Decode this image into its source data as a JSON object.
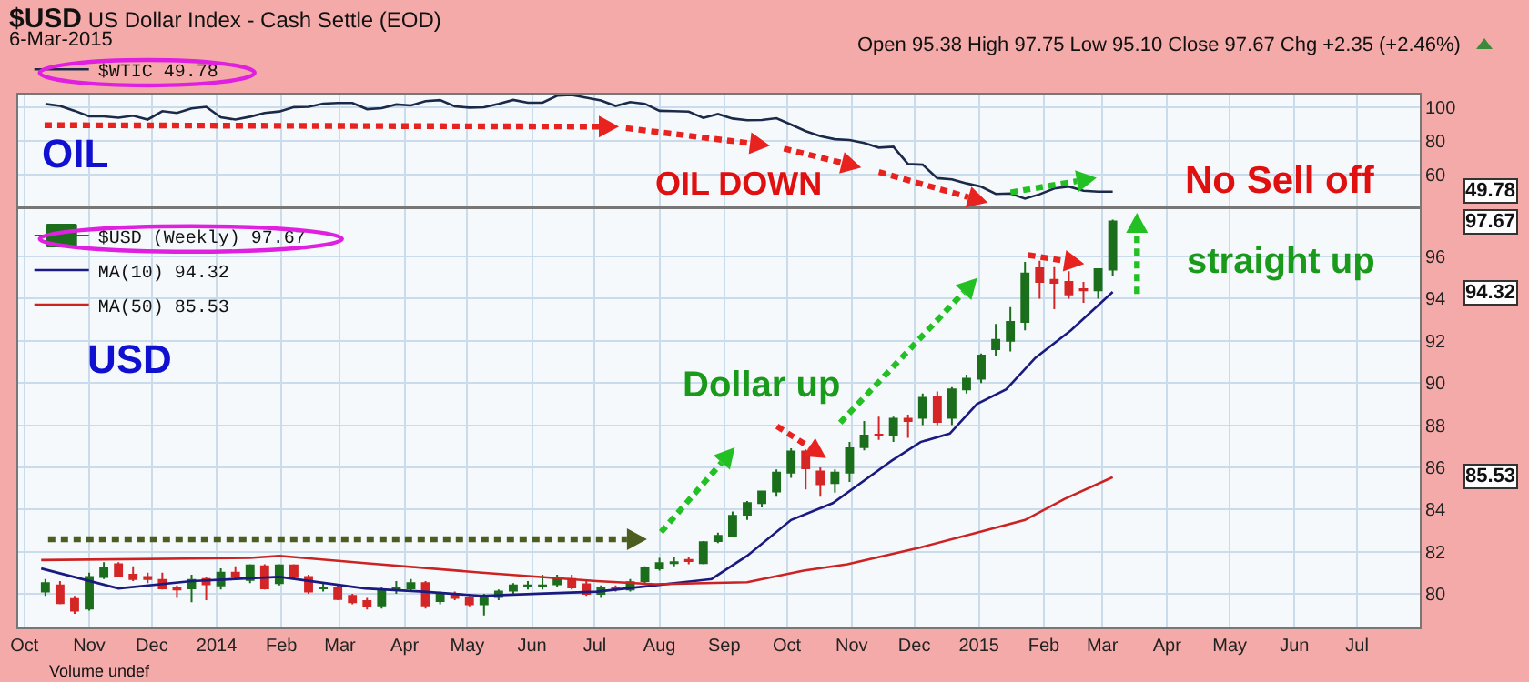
{
  "chart_data": [
    {
      "type": "line",
      "title": "$USD US Dollar Index - Cash Settle (EOD)",
      "subtitle": "6-Mar-2015",
      "annotations": [
        "Open 95.38 High 97.75 Low 95.10 Close 97.67 Chg +2.35 (+2.46%)",
        "OIL",
        "OIL DOWN",
        "No Sell off",
        "49.78"
      ],
      "x": [
        "2013-10-11",
        "2013-10-18",
        "2013-10-25",
        "2013-11-01",
        "2013-11-08",
        "2013-11-15",
        "2013-11-22",
        "2013-11-29",
        "2013-12-06",
        "2013-12-13",
        "2013-12-20",
        "2013-12-27",
        "2014-01-03",
        "2014-01-10",
        "2014-01-17",
        "2014-01-24",
        "2014-01-31",
        "2014-02-07",
        "2014-02-14",
        "2014-02-21",
        "2014-02-28",
        "2014-03-07",
        "2014-03-14",
        "2014-03-21",
        "2014-03-28",
        "2014-04-04",
        "2014-04-11",
        "2014-04-18",
        "2014-04-25",
        "2014-05-02",
        "2014-05-09",
        "2014-05-16",
        "2014-05-23",
        "2014-05-30",
        "2014-06-06",
        "2014-06-13",
        "2014-06-20",
        "2014-06-27",
        "2014-07-04",
        "2014-07-11",
        "2014-07-18",
        "2014-07-25",
        "2014-08-01",
        "2014-08-08",
        "2014-08-15",
        "2014-08-22",
        "2014-08-29",
        "2014-09-05",
        "2014-09-12",
        "2014-09-19",
        "2014-09-26",
        "2014-10-03",
        "2014-10-10",
        "2014-10-17",
        "2014-10-24",
        "2014-10-31",
        "2014-11-07",
        "2014-11-14",
        "2014-11-21",
        "2014-11-28",
        "2014-12-05",
        "2014-12-12",
        "2014-12-19",
        "2014-12-26",
        "2015-01-02",
        "2015-01-09",
        "2015-01-16",
        "2015-01-23",
        "2015-01-30",
        "2015-02-06",
        "2015-02-13",
        "2015-02-20",
        "2015-02-27",
        "2015-03-06"
      ],
      "series": [
        {
          "name": "$WTIC 49.78",
          "color": "#1c2a4a",
          "values": [
            102.0,
            100.8,
            97.9,
            94.6,
            94.6,
            93.8,
            95.0,
            92.7,
            97.7,
            96.6,
            99.3,
            100.3,
            94.0,
            92.7,
            94.4,
            96.6,
            97.5,
            100.1,
            100.3,
            102.2,
            102.6,
            102.6,
            98.9,
            99.5,
            101.7,
            101.1,
            103.7,
            104.3,
            100.6,
            99.8,
            100.0,
            102.0,
            104.4,
            102.7,
            102.7,
            106.9,
            107.3,
            105.7,
            104.1,
            100.8,
            103.1,
            102.1,
            97.9,
            97.7,
            97.4,
            93.7,
            96.0,
            93.3,
            92.3,
            92.4,
            93.5,
            89.7,
            85.8,
            82.8,
            81.0,
            80.5,
            78.7,
            76.0,
            76.5,
            66.2,
            65.8,
            57.8,
            57.1,
            54.7,
            52.7,
            48.4,
            48.7,
            45.6,
            48.2,
            51.7,
            52.8,
            50.3,
            49.8,
            49.78
          ]
        }
      ],
      "xlim": [
        "2013-09-28",
        "2015-07-31"
      ],
      "xticks": [
        {
          "value": "2013-10-01",
          "label": null
        },
        {
          "value": "2013-11-01",
          "label": null
        },
        {
          "value": "2013-12-01",
          "label": null
        },
        {
          "value": "2014-01-01",
          "label": null
        },
        {
          "value": "2014-02-01",
          "label": null
        },
        {
          "value": "2014-03-01",
          "label": null
        },
        {
          "value": "2014-04-01",
          "label": null
        },
        {
          "value": "2014-05-01",
          "label": null
        },
        {
          "value": "2014-06-01",
          "label": null
        },
        {
          "value": "2014-07-01",
          "label": null
        },
        {
          "value": "2014-08-01",
          "label": null
        },
        {
          "value": "2014-09-01",
          "label": null
        },
        {
          "value": "2014-10-01",
          "label": null
        },
        {
          "value": "2014-11-01",
          "label": null
        },
        {
          "value": "2014-12-01",
          "label": null
        },
        {
          "value": "2015-01-01",
          "label": null
        },
        {
          "value": "2015-02-01",
          "label": null
        },
        {
          "value": "2015-03-01",
          "label": null
        },
        {
          "value": "2015-04-01",
          "label": null
        },
        {
          "value": "2015-05-01",
          "label": null
        },
        {
          "value": "2015-06-01",
          "label": null
        },
        {
          "value": "2015-07-01",
          "label": null
        }
      ],
      "ylim": [
        41.5,
        107.6
      ],
      "yticks": [
        60,
        80,
        100
      ],
      "grid": true,
      "legend": "top left",
      "tick_labels": "y"
    },
    {
      "type": "candlestick",
      "annotations": [
        "USD",
        "Dollar up",
        "straight up",
        "Volume undef",
        "97.67",
        "94.32",
        "85.53"
      ],
      "x": [
        "2013-10-11",
        "2013-10-18",
        "2013-10-25",
        "2013-11-01",
        "2013-11-08",
        "2013-11-15",
        "2013-11-22",
        "2013-11-29",
        "2013-12-06",
        "2013-12-13",
        "2013-12-20",
        "2013-12-27",
        "2014-01-03",
        "2014-01-10",
        "2014-01-17",
        "2014-01-24",
        "2014-01-31",
        "2014-02-07",
        "2014-02-14",
        "2014-02-21",
        "2014-02-28",
        "2014-03-07",
        "2014-03-14",
        "2014-03-21",
        "2014-03-28",
        "2014-04-04",
        "2014-04-11",
        "2014-04-18",
        "2014-04-25",
        "2014-05-02",
        "2014-05-09",
        "2014-05-16",
        "2014-05-23",
        "2014-05-30",
        "2014-06-06",
        "2014-06-13",
        "2014-06-20",
        "2014-06-27",
        "2014-07-04",
        "2014-07-11",
        "2014-07-18",
        "2014-07-25",
        "2014-08-01",
        "2014-08-08",
        "2014-08-15",
        "2014-08-22",
        "2014-08-29",
        "2014-09-05",
        "2014-09-12",
        "2014-09-19",
        "2014-09-26",
        "2014-10-03",
        "2014-10-10",
        "2014-10-17",
        "2014-10-24",
        "2014-10-31",
        "2014-11-07",
        "2014-11-14",
        "2014-11-21",
        "2014-11-28",
        "2014-12-05",
        "2014-12-12",
        "2014-12-19",
        "2014-12-26",
        "2015-01-02",
        "2015-01-09",
        "2015-01-16",
        "2015-01-23",
        "2015-01-30",
        "2015-02-06",
        "2015-02-13",
        "2015-02-20",
        "2015-02-27",
        "2015-03-06"
      ],
      "series": [
        {
          "name": "$USD (Weekly) 97.67",
          "ohlc": [
            [
              80.1,
              80.7,
              79.9,
              80.5
            ],
            [
              80.4,
              80.6,
              79.5,
              79.55
            ],
            [
              79.75,
              79.9,
              79.05,
              79.2
            ],
            [
              79.3,
              81.0,
              79.2,
              80.8
            ],
            [
              80.8,
              81.5,
              80.7,
              81.2
            ],
            [
              81.4,
              81.5,
              80.8,
              80.85
            ],
            [
              80.9,
              81.3,
              80.6,
              80.7
            ],
            [
              80.8,
              81.0,
              80.5,
              80.7
            ],
            [
              80.65,
              81.0,
              80.2,
              80.25
            ],
            [
              80.25,
              80.4,
              79.8,
              80.2
            ],
            [
              80.25,
              80.9,
              79.6,
              80.65
            ],
            [
              80.7,
              80.8,
              79.7,
              80.45
            ],
            [
              80.4,
              81.2,
              80.2,
              81.0
            ],
            [
              81.0,
              81.3,
              80.7,
              80.8
            ],
            [
              80.65,
              81.4,
              80.5,
              81.35
            ],
            [
              81.3,
              81.4,
              80.2,
              80.25
            ],
            [
              80.5,
              81.4,
              80.4,
              81.35
            ],
            [
              81.35,
              81.4,
              80.7,
              80.8
            ],
            [
              80.8,
              80.9,
              80.0,
              80.1
            ],
            [
              80.25,
              80.5,
              80.1,
              80.3
            ],
            [
              80.3,
              80.4,
              79.7,
              79.75
            ],
            [
              79.9,
              80.0,
              79.5,
              79.6
            ],
            [
              79.65,
              79.8,
              79.25,
              79.4
            ],
            [
              79.45,
              80.3,
              79.3,
              80.2
            ],
            [
              80.25,
              80.6,
              80.0,
              80.3
            ],
            [
              80.25,
              80.7,
              80.1,
              80.5
            ],
            [
              80.5,
              80.6,
              79.3,
              79.45
            ],
            [
              79.65,
              80.1,
              79.5,
              80.0
            ],
            [
              80.0,
              80.1,
              79.7,
              79.8
            ],
            [
              79.8,
              79.9,
              79.4,
              79.5
            ],
            [
              79.5,
              80.0,
              78.97,
              79.8
            ],
            [
              79.85,
              80.2,
              79.7,
              80.1
            ],
            [
              80.15,
              80.5,
              80.0,
              80.4
            ],
            [
              80.35,
              80.6,
              80.2,
              80.4
            ],
            [
              80.35,
              80.9,
              80.2,
              80.4
            ],
            [
              80.45,
              80.9,
              80.3,
              80.7
            ],
            [
              80.7,
              80.9,
              80.2,
              80.3
            ],
            [
              80.45,
              80.6,
              79.9,
              80.0
            ],
            [
              80.0,
              80.4,
              79.8,
              80.3
            ],
            [
              80.3,
              80.4,
              80.1,
              80.25
            ],
            [
              80.2,
              80.7,
              80.1,
              80.55
            ],
            [
              80.6,
              81.3,
              80.5,
              81.2
            ],
            [
              81.2,
              81.7,
              81.1,
              81.45
            ],
            [
              81.45,
              81.75,
              81.3,
              81.5
            ],
            [
              81.6,
              81.75,
              81.4,
              81.55
            ],
            [
              81.45,
              82.5,
              81.4,
              82.45
            ],
            [
              82.5,
              82.9,
              82.4,
              82.75
            ],
            [
              82.75,
              83.9,
              82.7,
              83.7
            ],
            [
              83.75,
              84.4,
              83.5,
              84.3
            ],
            [
              84.3,
              84.9,
              84.1,
              84.85
            ],
            [
              84.85,
              85.9,
              84.6,
              85.75
            ],
            [
              85.75,
              86.9,
              85.5,
              86.75
            ],
            [
              86.75,
              86.85,
              84.95,
              85.95
            ],
            [
              85.8,
              86.0,
              84.6,
              85.2
            ],
            [
              85.25,
              85.9,
              84.8,
              85.75
            ],
            [
              85.75,
              87.2,
              85.3,
              86.9
            ],
            [
              86.95,
              88.2,
              86.8,
              87.5
            ],
            [
              87.55,
              88.4,
              87.3,
              87.5
            ],
            [
              87.5,
              88.4,
              87.2,
              88.3
            ],
            [
              88.3,
              88.5,
              87.4,
              88.2
            ],
            [
              88.35,
              89.5,
              88.0,
              89.3
            ],
            [
              89.35,
              89.6,
              88.0,
              88.15
            ],
            [
              88.35,
              89.8,
              88.0,
              89.7
            ],
            [
              89.7,
              90.4,
              89.5,
              90.2
            ],
            [
              90.2,
              91.4,
              90.0,
              91.3
            ],
            [
              91.6,
              92.8,
              91.3,
              92.05
            ],
            [
              92.0,
              93.6,
              91.5,
              92.9
            ],
            [
              92.9,
              95.75,
              92.5,
              95.2
            ],
            [
              95.45,
              95.8,
              94.0,
              94.8
            ],
            [
              94.9,
              95.5,
              93.5,
              94.75
            ],
            [
              94.8,
              95.3,
              94.0,
              94.2
            ],
            [
              94.45,
              94.8,
              93.8,
              94.4
            ],
            [
              94.4,
              95.4,
              94.0,
              95.4
            ],
            [
              95.38,
              97.75,
              95.1,
              97.67
            ]
          ],
          "colors": [
            "#1b6e1b",
            "#d42626",
            "#d42626",
            "#1b6e1b",
            "#1b6e1b",
            "#d42626",
            "#d42626",
            "#d42626",
            "#d42626",
            "#d42626",
            "#1b6e1b",
            "#d42626",
            "#1b6e1b",
            "#d42626",
            "#1b6e1b",
            "#d42626",
            "#1b6e1b",
            "#d42626",
            "#d42626",
            "#1b6e1b",
            "#d42626",
            "#d42626",
            "#d42626",
            "#1b6e1b",
            "#1b6e1b",
            "#1b6e1b",
            "#d42626",
            "#1b6e1b",
            "#d42626",
            "#d42626",
            "#1b6e1b",
            "#1b6e1b",
            "#1b6e1b",
            "#1b6e1b",
            "#1b6e1b",
            "#1b6e1b",
            "#d42626",
            "#d42626",
            "#1b6e1b",
            "#d42626",
            "#1b6e1b",
            "#1b6e1b",
            "#1b6e1b",
            "#1b6e1b",
            "#d42626",
            "#1b6e1b",
            "#1b6e1b",
            "#1b6e1b",
            "#1b6e1b",
            "#1b6e1b",
            "#1b6e1b",
            "#1b6e1b",
            "#d42626",
            "#d42626",
            "#1b6e1b",
            "#1b6e1b",
            "#1b6e1b",
            "#d42626",
            "#1b6e1b",
            "#d42626",
            "#1b6e1b",
            "#d42626",
            "#1b6e1b",
            "#1b6e1b",
            "#1b6e1b",
            "#1b6e1b",
            "#1b6e1b",
            "#1b6e1b",
            "#d42626",
            "#d42626",
            "#d42626",
            "#d42626",
            "#1b6e1b",
            "#1b6e1b"
          ]
        },
        {
          "name": "MA(10) 94.32",
          "type": "line",
          "color": "#1a1a80",
          "x": [
            "2013-10-09",
            "2013-11-15",
            "2013-12-20",
            "2014-01-31",
            "2014-03-13",
            "2014-04-10",
            "2014-05-08",
            "2014-06-04",
            "2014-07-02",
            "2014-07-30",
            "2014-08-26",
            "2014-09-12",
            "2014-10-03",
            "2014-10-23",
            "2014-11-20",
            "2014-12-04",
            "2014-12-18",
            "2014-12-31",
            "2015-01-14",
            "2015-01-28",
            "2015-02-14",
            "2015-03-06"
          ],
          "values": [
            81.2,
            80.25,
            80.6,
            80.8,
            80.25,
            80.1,
            79.9,
            80.0,
            80.1,
            80.4,
            80.7,
            81.8,
            83.5,
            84.3,
            86.3,
            87.2,
            87.6,
            89.0,
            89.7,
            91.2,
            92.5,
            94.32
          ]
        },
        {
          "name": "MA(50) 85.53",
          "type": "line",
          "color": "#cc2222",
          "x": [
            "2013-10-09",
            "2014-01-17",
            "2014-01-31",
            "2014-03-13",
            "2014-05-08",
            "2014-07-02",
            "2014-07-30",
            "2014-09-12",
            "2014-10-09",
            "2014-10-30",
            "2014-12-04",
            "2014-12-31",
            "2015-01-23",
            "2015-02-11",
            "2015-03-06"
          ],
          "values": [
            81.6,
            81.7,
            81.8,
            81.45,
            81.0,
            80.6,
            80.45,
            80.55,
            81.1,
            81.4,
            82.2,
            82.9,
            83.5,
            84.5,
            85.53
          ]
        }
      ],
      "xlim": [
        "2013-09-28",
        "2015-07-31"
      ],
      "xticks": [
        {
          "value": "2013-10-01",
          "label": "Oct"
        },
        {
          "value": "2013-11-01",
          "label": "Nov"
        },
        {
          "value": "2013-12-01",
          "label": "Dec"
        },
        {
          "value": "2014-01-01",
          "label": "2014"
        },
        {
          "value": "2014-02-01",
          "label": "Feb"
        },
        {
          "value": "2014-03-01",
          "label": "Mar"
        },
        {
          "value": "2014-04-01",
          "label": "Apr"
        },
        {
          "value": "2014-05-01",
          "label": "May"
        },
        {
          "value": "2014-06-01",
          "label": "Jun"
        },
        {
          "value": "2014-07-01",
          "label": "Jul"
        },
        {
          "value": "2014-08-01",
          "label": "Aug"
        },
        {
          "value": "2014-09-01",
          "label": "Sep"
        },
        {
          "value": "2014-10-01",
          "label": "Oct"
        },
        {
          "value": "2014-11-01",
          "label": "Nov"
        },
        {
          "value": "2014-12-01",
          "label": "Dec"
        },
        {
          "value": "2015-01-01",
          "label": "2015"
        },
        {
          "value": "2015-02-01",
          "label": "Feb"
        },
        {
          "value": "2015-03-01",
          "label": "Mar"
        },
        {
          "value": "2015-04-01",
          "label": "Apr"
        },
        {
          "value": "2015-05-01",
          "label": "May"
        },
        {
          "value": "2015-06-01",
          "label": "Jun"
        },
        {
          "value": "2015-07-01",
          "label": "Jul"
        }
      ],
      "ylim": [
        78.4,
        98.25
      ],
      "yticks": [
        80,
        82,
        84,
        86,
        88,
        90,
        92,
        94,
        96
      ],
      "grid": true,
      "legend": "top left"
    }
  ]
}
